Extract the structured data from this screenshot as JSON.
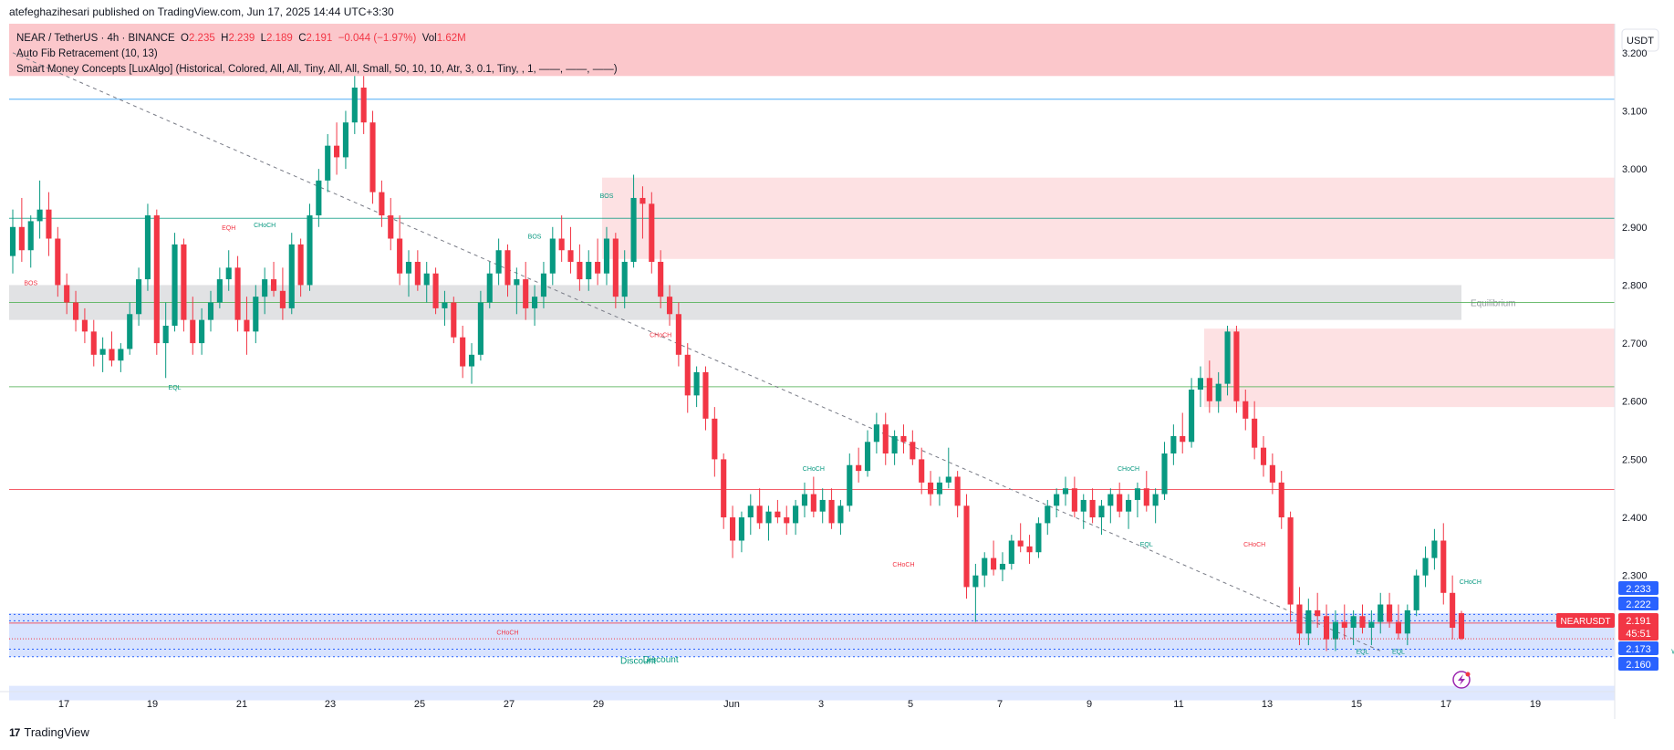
{
  "header": {
    "published_by": "atefeghazihesari published on TradingView.com, Jun 17, 2025 14:44 UTC+3:30"
  },
  "legend": {
    "symbol": "NEAR / TetherUS · 4h · BINANCE",
    "o_label": "O",
    "o": "2.235",
    "h_label": "H",
    "h": "2.239",
    "l_label": "L",
    "l": "2.189",
    "c_label": "C",
    "c": "2.191",
    "change": "−0.044 (−1.97%)",
    "vol_label": "Vol",
    "vol": "1.62M",
    "indicator1": "Auto Fib Retracement (10, 13)",
    "indicator2": "Smart Money Concepts [LuxAlgo] (Historical, Colored, All, All, Tiny, All, All, Small, 50, 10, 10, Atr, 3, 0.1, Tiny, , 1, ——, ——, ——)"
  },
  "footer": {
    "brand": "TradingView",
    "logo_text": "17"
  },
  "colors": {
    "up": "#089981",
    "down": "#f23645",
    "text": "#131722",
    "price_label": "#f23645",
    "blue_label": "#2962ff"
  },
  "chart_data": {
    "type": "candlestick",
    "y_unit": "USDT",
    "ylim": [
      2.1,
      3.25
    ],
    "y_ticks": [
      "3.200",
      "3.100",
      "3.000",
      "2.900",
      "2.800",
      "2.700",
      "2.600",
      "2.500",
      "2.400",
      "2.300"
    ],
    "x_ticks": [
      "17",
      "19",
      "21",
      "23",
      "25",
      "27",
      "29",
      "Jun",
      "3",
      "5",
      "7",
      "9",
      "11",
      "13",
      "15",
      "17",
      "19"
    ],
    "current_price": {
      "symbol": "NEARUSDT",
      "value": "2.191",
      "countdown": "45:51"
    },
    "price_labels": [
      "2.233",
      "2.222",
      "2.173",
      "2.160"
    ],
    "horizontal_levels": [
      3.12,
      2.915,
      2.77,
      2.625,
      2.448,
      2.218
    ],
    "zones": [
      {
        "name": "premium-top",
        "from": 3.16,
        "to": 3.25
      },
      {
        "name": "supply-1",
        "from": 2.845,
        "to": 2.985
      },
      {
        "name": "equilibrium",
        "from": 2.74,
        "to": 2.8,
        "label": "Equilibrium"
      },
      {
        "name": "supply-2",
        "from": 2.59,
        "to": 2.725
      },
      {
        "name": "discount",
        "from": 2.16,
        "to": 2.235,
        "label": "Discount"
      },
      {
        "name": "weak-low-band",
        "from": 2.085,
        "to": 2.11
      }
    ],
    "structure_labels": [
      {
        "text": "BOS",
        "price": 2.8,
        "idx": 2,
        "color": "down"
      },
      {
        "text": "EQH",
        "price": 2.895,
        "idx": 24,
        "color": "down"
      },
      {
        "text": "CHoCH",
        "price": 2.9,
        "idx": 28,
        "color": "up"
      },
      {
        "text": "EQL",
        "price": 2.62,
        "idx": 18,
        "color": "up"
      },
      {
        "text": "BOS",
        "price": 2.88,
        "idx": 58,
        "color": "up"
      },
      {
        "text": "BOS",
        "price": 2.95,
        "idx": 66,
        "color": "up"
      },
      {
        "text": "CHoCH",
        "price": 2.71,
        "idx": 72,
        "color": "down"
      },
      {
        "text": "CHoCH",
        "price": 2.48,
        "idx": 89,
        "color": "up"
      },
      {
        "text": "CHoCH",
        "price": 2.315,
        "idx": 99,
        "color": "down"
      },
      {
        "text": "CHoCH",
        "price": 2.48,
        "idx": 124,
        "color": "up"
      },
      {
        "text": "EQL",
        "price": 2.35,
        "idx": 126,
        "color": "up"
      },
      {
        "text": "CHoCH",
        "price": 2.35,
        "idx": 138,
        "color": "down"
      },
      {
        "text": "CHoCH",
        "price": 2.198,
        "idx": 55,
        "color": "down"
      },
      {
        "text": "EQL",
        "price": 2.165,
        "idx": 150,
        "color": "up"
      },
      {
        "text": "EQL",
        "price": 2.165,
        "idx": 154,
        "color": "up"
      },
      {
        "text": "CHoCH",
        "price": 2.285,
        "idx": 162,
        "color": "up"
      },
      {
        "text": "Discount",
        "price": 2.15,
        "idx": 72,
        "color": "up"
      },
      {
        "text": "Weak Low",
        "price": 2.165,
        "idx": 186,
        "color": "up"
      }
    ],
    "candles": [
      [
        2.85,
        2.93,
        2.82,
        2.9
      ],
      [
        2.9,
        2.95,
        2.84,
        2.86
      ],
      [
        2.86,
        2.92,
        2.83,
        2.91
      ],
      [
        2.91,
        2.98,
        2.88,
        2.93
      ],
      [
        2.93,
        2.96,
        2.85,
        2.88
      ],
      [
        2.88,
        2.9,
        2.78,
        2.8
      ],
      [
        2.8,
        2.82,
        2.75,
        2.77
      ],
      [
        2.77,
        2.79,
        2.72,
        2.74
      ],
      [
        2.74,
        2.76,
        2.7,
        2.72
      ],
      [
        2.72,
        2.74,
        2.66,
        2.68
      ],
      [
        2.68,
        2.71,
        2.65,
        2.69
      ],
      [
        2.69,
        2.72,
        2.66,
        2.67
      ],
      [
        2.67,
        2.7,
        2.65,
        2.69
      ],
      [
        2.69,
        2.77,
        2.68,
        2.75
      ],
      [
        2.75,
        2.83,
        2.73,
        2.81
      ],
      [
        2.81,
        2.94,
        2.79,
        2.92
      ],
      [
        2.92,
        2.93,
        2.68,
        2.7
      ],
      [
        2.7,
        2.77,
        2.64,
        2.73
      ],
      [
        2.73,
        2.89,
        2.72,
        2.87
      ],
      [
        2.87,
        2.88,
        2.72,
        2.74
      ],
      [
        2.74,
        2.78,
        2.68,
        2.7
      ],
      [
        2.7,
        2.76,
        2.68,
        2.74
      ],
      [
        2.74,
        2.79,
        2.72,
        2.77
      ],
      [
        2.77,
        2.83,
        2.76,
        2.81
      ],
      [
        2.81,
        2.86,
        2.79,
        2.83
      ],
      [
        2.83,
        2.85,
        2.72,
        2.74
      ],
      [
        2.74,
        2.78,
        2.68,
        2.72
      ],
      [
        2.72,
        2.8,
        2.7,
        2.78
      ],
      [
        2.78,
        2.83,
        2.75,
        2.81
      ],
      [
        2.81,
        2.84,
        2.78,
        2.79
      ],
      [
        2.79,
        2.83,
        2.74,
        2.76
      ],
      [
        2.76,
        2.89,
        2.75,
        2.87
      ],
      [
        2.87,
        2.88,
        2.78,
        2.8
      ],
      [
        2.8,
        2.94,
        2.79,
        2.92
      ],
      [
        2.92,
        3.0,
        2.9,
        2.98
      ],
      [
        2.98,
        3.06,
        2.96,
        3.04
      ],
      [
        3.04,
        3.08,
        2.99,
        3.02
      ],
      [
        3.02,
        3.1,
        3.0,
        3.08
      ],
      [
        3.08,
        3.16,
        3.06,
        3.14
      ],
      [
        3.14,
        3.16,
        3.06,
        3.08
      ],
      [
        3.08,
        3.1,
        2.94,
        2.96
      ],
      [
        2.96,
        2.98,
        2.9,
        2.92
      ],
      [
        2.92,
        2.95,
        2.86,
        2.88
      ],
      [
        2.88,
        2.92,
        2.8,
        2.82
      ],
      [
        2.82,
        2.86,
        2.78,
        2.84
      ],
      [
        2.84,
        2.86,
        2.79,
        2.8
      ],
      [
        2.8,
        2.84,
        2.77,
        2.82
      ],
      [
        2.82,
        2.83,
        2.75,
        2.76
      ],
      [
        2.76,
        2.79,
        2.73,
        2.77
      ],
      [
        2.77,
        2.78,
        2.7,
        2.71
      ],
      [
        2.71,
        2.73,
        2.64,
        2.66
      ],
      [
        2.66,
        2.7,
        2.63,
        2.68
      ],
      [
        2.68,
        2.79,
        2.67,
        2.77
      ],
      [
        2.77,
        2.84,
        2.76,
        2.82
      ],
      [
        2.82,
        2.88,
        2.8,
        2.86
      ],
      [
        2.86,
        2.87,
        2.78,
        2.8
      ],
      [
        2.8,
        2.83,
        2.75,
        2.81
      ],
      [
        2.81,
        2.84,
        2.74,
        2.76
      ],
      [
        2.76,
        2.8,
        2.73,
        2.78
      ],
      [
        2.78,
        2.84,
        2.76,
        2.82
      ],
      [
        2.82,
        2.9,
        2.8,
        2.88
      ],
      [
        2.88,
        2.92,
        2.84,
        2.86
      ],
      [
        2.86,
        2.9,
        2.82,
        2.84
      ],
      [
        2.84,
        2.87,
        2.79,
        2.81
      ],
      [
        2.81,
        2.86,
        2.79,
        2.84
      ],
      [
        2.84,
        2.88,
        2.8,
        2.82
      ],
      [
        2.82,
        2.9,
        2.8,
        2.88
      ],
      [
        2.88,
        2.89,
        2.76,
        2.78
      ],
      [
        2.78,
        2.86,
        2.76,
        2.84
      ],
      [
        2.84,
        2.99,
        2.83,
        2.95
      ],
      [
        2.95,
        2.97,
        2.88,
        2.94
      ],
      [
        2.94,
        2.96,
        2.82,
        2.84
      ],
      [
        2.84,
        2.86,
        2.76,
        2.78
      ],
      [
        2.78,
        2.8,
        2.73,
        2.75
      ],
      [
        2.75,
        2.77,
        2.66,
        2.68
      ],
      [
        2.68,
        2.7,
        2.58,
        2.61
      ],
      [
        2.61,
        2.66,
        2.59,
        2.65
      ],
      [
        2.65,
        2.66,
        2.55,
        2.57
      ],
      [
        2.57,
        2.59,
        2.47,
        2.5
      ],
      [
        2.5,
        2.51,
        2.38,
        2.4
      ],
      [
        2.4,
        2.42,
        2.33,
        2.36
      ],
      [
        2.36,
        2.41,
        2.34,
        2.4
      ],
      [
        2.4,
        2.44,
        2.37,
        2.42
      ],
      [
        2.42,
        2.45,
        2.38,
        2.39
      ],
      [
        2.39,
        2.42,
        2.36,
        2.41
      ],
      [
        2.41,
        2.43,
        2.39,
        2.4
      ],
      [
        2.4,
        2.42,
        2.37,
        2.39
      ],
      [
        2.39,
        2.43,
        2.37,
        2.42
      ],
      [
        2.42,
        2.46,
        2.4,
        2.44
      ],
      [
        2.44,
        2.47,
        2.4,
        2.41
      ],
      [
        2.41,
        2.45,
        2.39,
        2.43
      ],
      [
        2.43,
        2.45,
        2.38,
        2.39
      ],
      [
        2.39,
        2.43,
        2.37,
        2.42
      ],
      [
        2.42,
        2.51,
        2.41,
        2.49
      ],
      [
        2.49,
        2.52,
        2.46,
        2.48
      ],
      [
        2.48,
        2.55,
        2.47,
        2.53
      ],
      [
        2.53,
        2.58,
        2.51,
        2.56
      ],
      [
        2.56,
        2.58,
        2.49,
        2.51
      ],
      [
        2.51,
        2.55,
        2.49,
        2.54
      ],
      [
        2.54,
        2.56,
        2.51,
        2.53
      ],
      [
        2.53,
        2.55,
        2.49,
        2.5
      ],
      [
        2.5,
        2.52,
        2.44,
        2.46
      ],
      [
        2.46,
        2.48,
        2.42,
        2.44
      ],
      [
        2.44,
        2.47,
        2.42,
        2.46
      ],
      [
        2.46,
        2.52,
        2.45,
        2.47
      ],
      [
        2.47,
        2.48,
        2.4,
        2.42
      ],
      [
        2.42,
        2.44,
        2.26,
        2.28
      ],
      [
        2.28,
        2.32,
        2.22,
        2.3
      ],
      [
        2.3,
        2.34,
        2.28,
        2.33
      ],
      [
        2.33,
        2.36,
        2.3,
        2.31
      ],
      [
        2.31,
        2.34,
        2.29,
        2.32
      ],
      [
        2.32,
        2.37,
        2.31,
        2.36
      ],
      [
        2.36,
        2.39,
        2.34,
        2.35
      ],
      [
        2.35,
        2.37,
        2.32,
        2.34
      ],
      [
        2.34,
        2.4,
        2.33,
        2.39
      ],
      [
        2.39,
        2.43,
        2.37,
        2.42
      ],
      [
        2.42,
        2.45,
        2.4,
        2.44
      ],
      [
        2.44,
        2.47,
        2.42,
        2.45
      ],
      [
        2.45,
        2.47,
        2.4,
        2.41
      ],
      [
        2.41,
        2.44,
        2.38,
        2.43
      ],
      [
        2.43,
        2.45,
        2.39,
        2.4
      ],
      [
        2.4,
        2.43,
        2.37,
        2.42
      ],
      [
        2.42,
        2.45,
        2.39,
        2.44
      ],
      [
        2.44,
        2.46,
        2.4,
        2.41
      ],
      [
        2.41,
        2.44,
        2.38,
        2.43
      ],
      [
        2.43,
        2.46,
        2.4,
        2.45
      ],
      [
        2.45,
        2.48,
        2.41,
        2.42
      ],
      [
        2.42,
        2.45,
        2.39,
        2.44
      ],
      [
        2.44,
        2.53,
        2.43,
        2.51
      ],
      [
        2.51,
        2.56,
        2.49,
        2.54
      ],
      [
        2.54,
        2.58,
        2.51,
        2.53
      ],
      [
        2.53,
        2.64,
        2.52,
        2.62
      ],
      [
        2.62,
        2.66,
        2.59,
        2.64
      ],
      [
        2.64,
        2.67,
        2.58,
        2.6
      ],
      [
        2.6,
        2.65,
        2.58,
        2.63
      ],
      [
        2.63,
        2.73,
        2.61,
        2.72
      ],
      [
        2.72,
        2.73,
        2.58,
        2.6
      ],
      [
        2.6,
        2.62,
        2.55,
        2.57
      ],
      [
        2.57,
        2.6,
        2.5,
        2.52
      ],
      [
        2.52,
        2.54,
        2.47,
        2.49
      ],
      [
        2.49,
        2.51,
        2.44,
        2.46
      ],
      [
        2.46,
        2.48,
        2.38,
        2.4
      ],
      [
        2.4,
        2.41,
        2.22,
        2.25
      ],
      [
        2.25,
        2.28,
        2.18,
        2.2
      ],
      [
        2.2,
        2.26,
        2.18,
        2.24
      ],
      [
        2.24,
        2.27,
        2.21,
        2.23
      ],
      [
        2.23,
        2.25,
        2.17,
        2.19
      ],
      [
        2.19,
        2.24,
        2.17,
        2.22
      ],
      [
        2.22,
        2.25,
        2.19,
        2.21
      ],
      [
        2.21,
        2.24,
        2.18,
        2.23
      ],
      [
        2.23,
        2.25,
        2.2,
        2.21
      ],
      [
        2.21,
        2.24,
        2.18,
        2.22
      ],
      [
        2.22,
        2.27,
        2.2,
        2.25
      ],
      [
        2.25,
        2.27,
        2.21,
        2.22
      ],
      [
        2.22,
        2.25,
        2.19,
        2.2
      ],
      [
        2.2,
        2.25,
        2.18,
        2.24
      ],
      [
        2.24,
        2.31,
        2.23,
        2.3
      ],
      [
        2.3,
        2.35,
        2.28,
        2.33
      ],
      [
        2.33,
        2.38,
        2.31,
        2.36
      ],
      [
        2.36,
        2.39,
        2.25,
        2.27
      ],
      [
        2.27,
        2.3,
        2.19,
        2.21
      ],
      [
        2.235,
        2.239,
        2.189,
        2.191
      ]
    ]
  }
}
